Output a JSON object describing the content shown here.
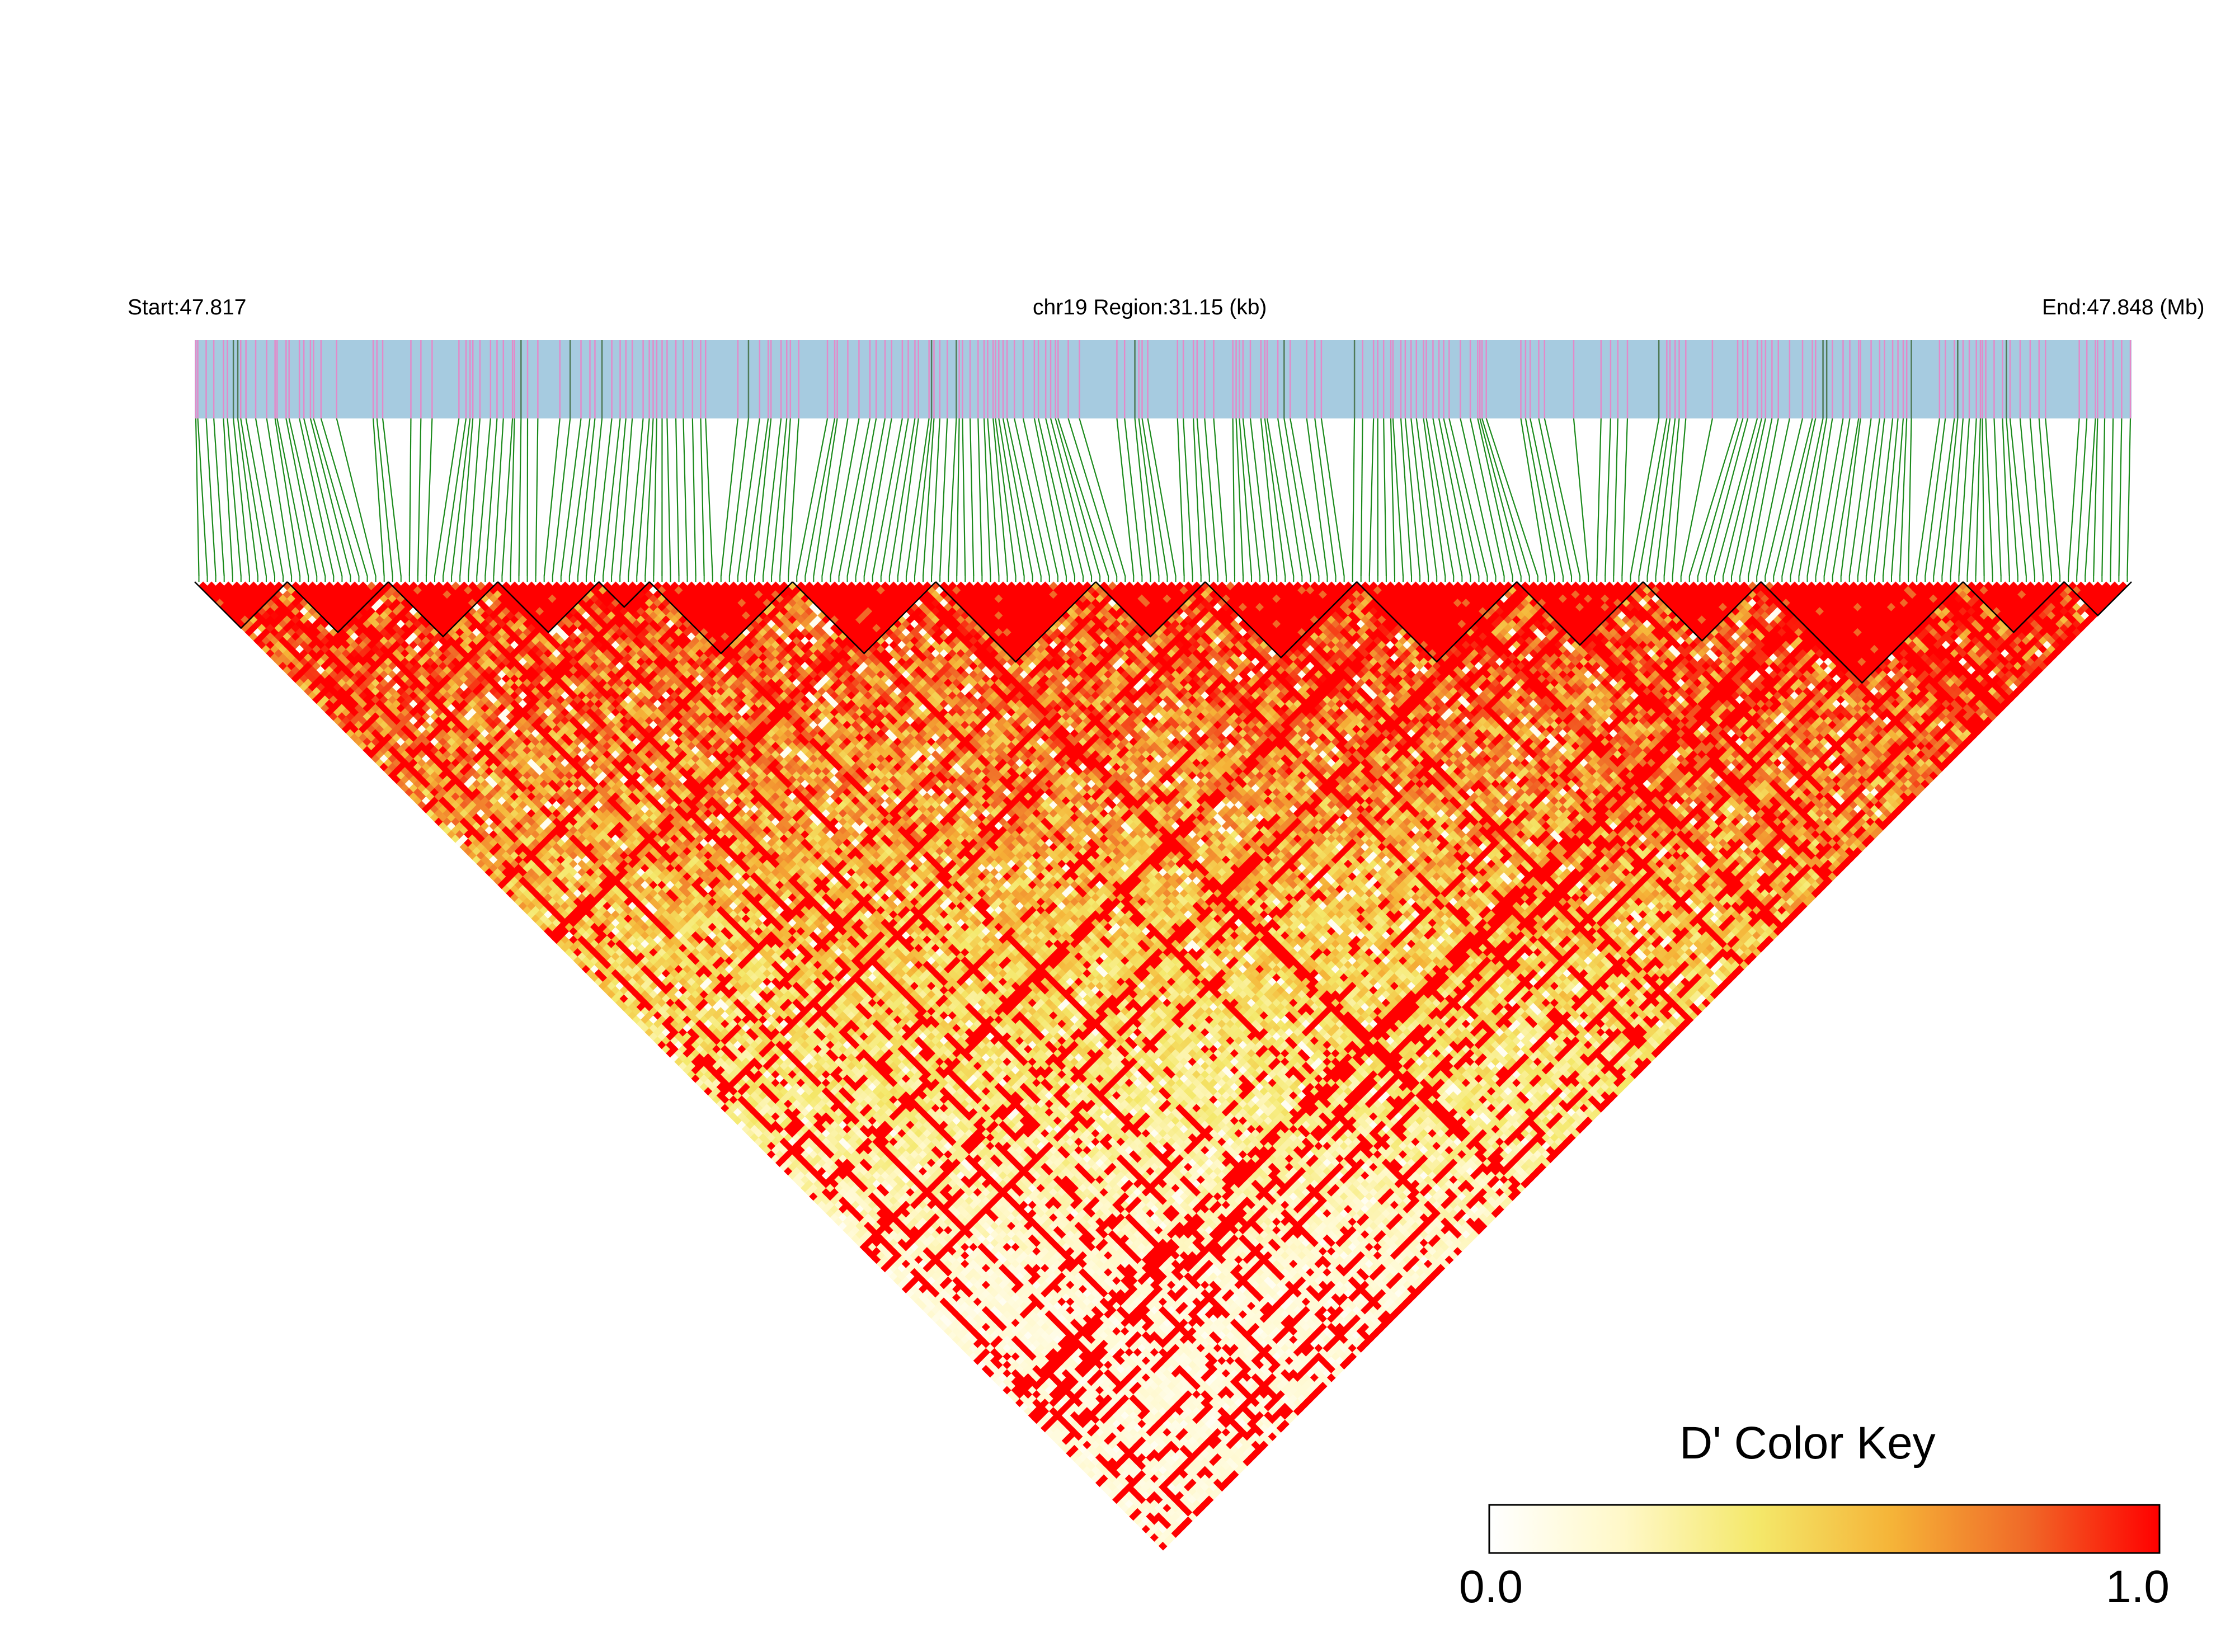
{
  "chart_data": {
    "type": "heatmap",
    "title": "chr19 Region:31.15 (kb)",
    "start_label": "Start:47.817",
    "end_label": "End:47.848 (Mb)",
    "chromosome": "chr19",
    "region_start_mb": 47.817,
    "region_end_mb": 47.848,
    "region_length_kb": 31.15,
    "measure": "D'",
    "color_key": {
      "title": "D' Color Key",
      "min_label": "0.0",
      "max_label": "1.0",
      "range": [
        0,
        1
      ],
      "stops": [
        "#ffffff",
        "#fff8c8",
        "#f4e86a",
        "#f5b438",
        "#f06a28",
        "#ff0000"
      ]
    },
    "colors": {
      "track_background": "#a6cbe0",
      "variant_tick": "#e38ac9",
      "variant_tick_dark": "#4f7a57",
      "connector_lines": "#1b8a1b",
      "block_outline": "#000000"
    },
    "n_variants": 230,
    "haplotype_blocks_variant_ranges": [
      [
        0,
        11
      ],
      [
        11,
        23
      ],
      [
        23,
        36
      ],
      [
        36,
        48
      ],
      [
        48,
        54
      ],
      [
        54,
        71
      ],
      [
        71,
        88
      ],
      [
        88,
        107
      ],
      [
        107,
        120
      ],
      [
        120,
        138
      ],
      [
        138,
        157
      ],
      [
        157,
        172
      ],
      [
        172,
        186
      ],
      [
        186,
        210
      ],
      [
        210,
        222
      ],
      [
        222,
        230
      ]
    ]
  }
}
